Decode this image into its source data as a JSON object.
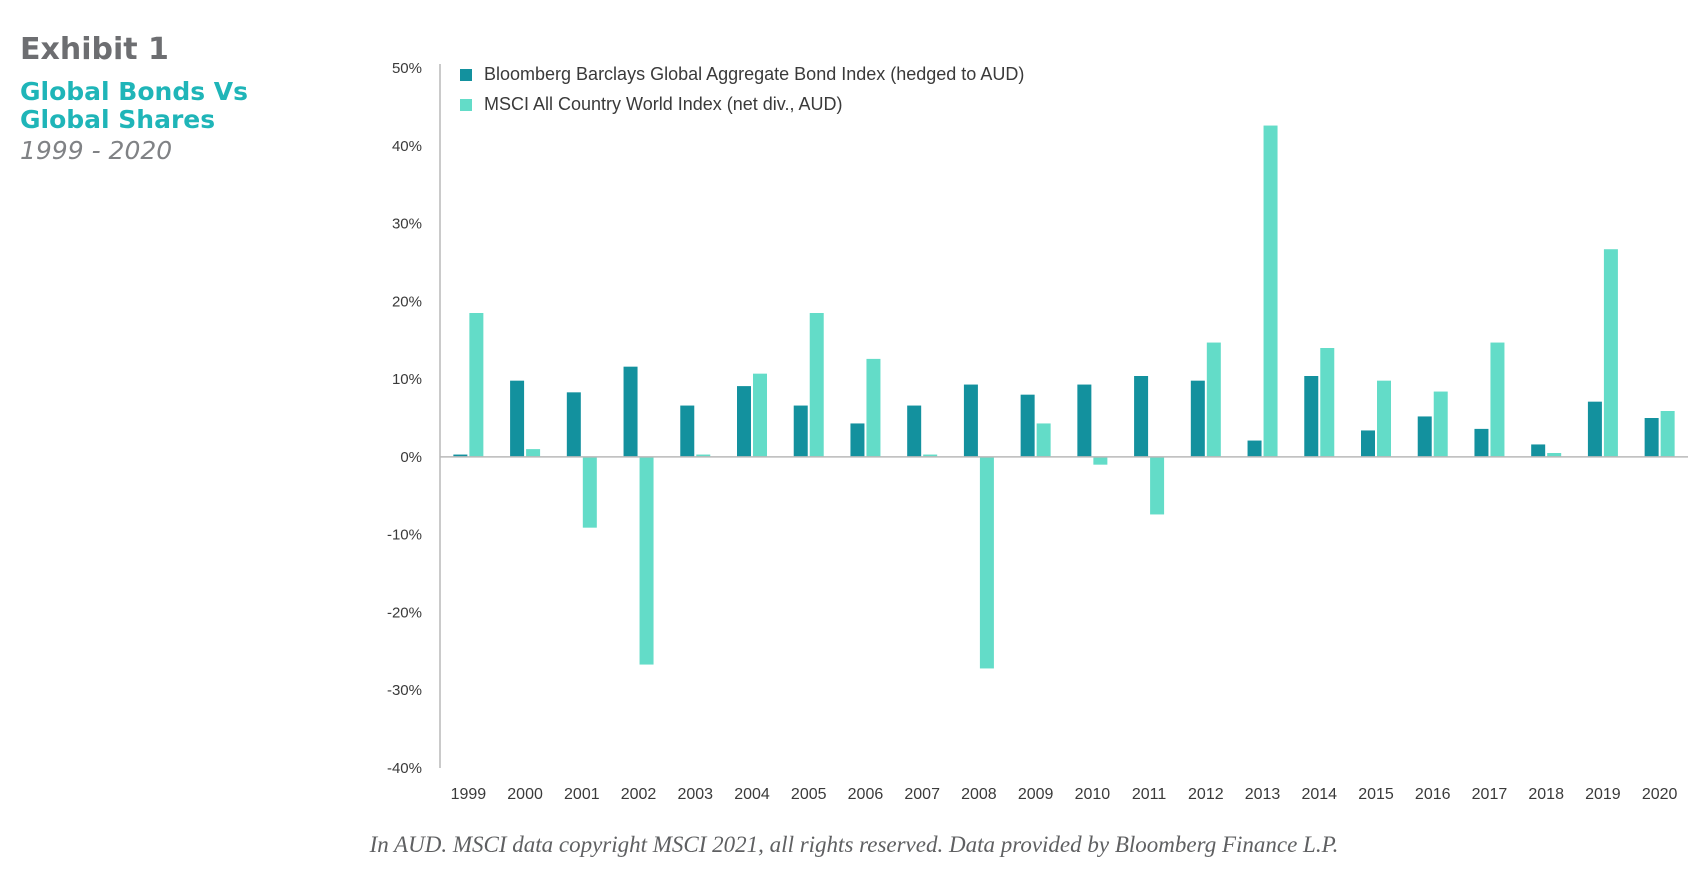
{
  "header": {
    "exhibit": "Exhibit 1",
    "subtitle_line1": "Global Bonds Vs",
    "subtitle_line2": "Global Shares",
    "years": "1999 - 2020"
  },
  "caption": "In AUD. MSCI data copyright MSCI 2021, all rights reserved. Data provided by Bloomberg Finance L.P.",
  "colors": {
    "bond": "#13919e",
    "equity": "#63dcc8",
    "axis": "#b9b9b9"
  },
  "chart_data": {
    "type": "bar",
    "title": "",
    "xlabel": "",
    "ylabel": "",
    "ylim": [
      -40,
      50
    ],
    "yticks": [
      50,
      40,
      30,
      20,
      10,
      0,
      -10,
      -20,
      -30,
      -40
    ],
    "ytick_labels": [
      "50%",
      "40%",
      "30%",
      "20%",
      "10%",
      "0%",
      "-10%",
      "-20%",
      "-30%",
      "-40%"
    ],
    "grid": false,
    "legend_position": "top-left",
    "categories": [
      "1999",
      "2000",
      "2001",
      "2002",
      "2003",
      "2004",
      "2005",
      "2006",
      "2007",
      "2008",
      "2009",
      "2010",
      "2011",
      "2012",
      "2013",
      "2014",
      "2015",
      "2016",
      "2017",
      "2018",
      "2019",
      "2020"
    ],
    "series": [
      {
        "name": "Bloomberg Barclays Global Aggregate Bond Index (hedged to AUD)",
        "values": [
          0.3,
          9.8,
          8.3,
          11.6,
          6.6,
          9.1,
          6.6,
          4.3,
          6.6,
          9.3,
          8.0,
          9.3,
          10.4,
          9.8,
          2.1,
          10.4,
          3.4,
          5.2,
          3.6,
          1.6,
          7.1,
          5.0
        ]
      },
      {
        "name": "MSCI All Country World Index (net div., AUD)",
        "values": [
          18.5,
          1.0,
          -9.1,
          -26.7,
          0.3,
          10.7,
          18.5,
          12.6,
          0.3,
          -27.2,
          4.3,
          -1.0,
          -7.4,
          14.7,
          42.6,
          14.0,
          9.8,
          8.4,
          14.7,
          0.5,
          26.7,
          5.9
        ]
      }
    ]
  }
}
